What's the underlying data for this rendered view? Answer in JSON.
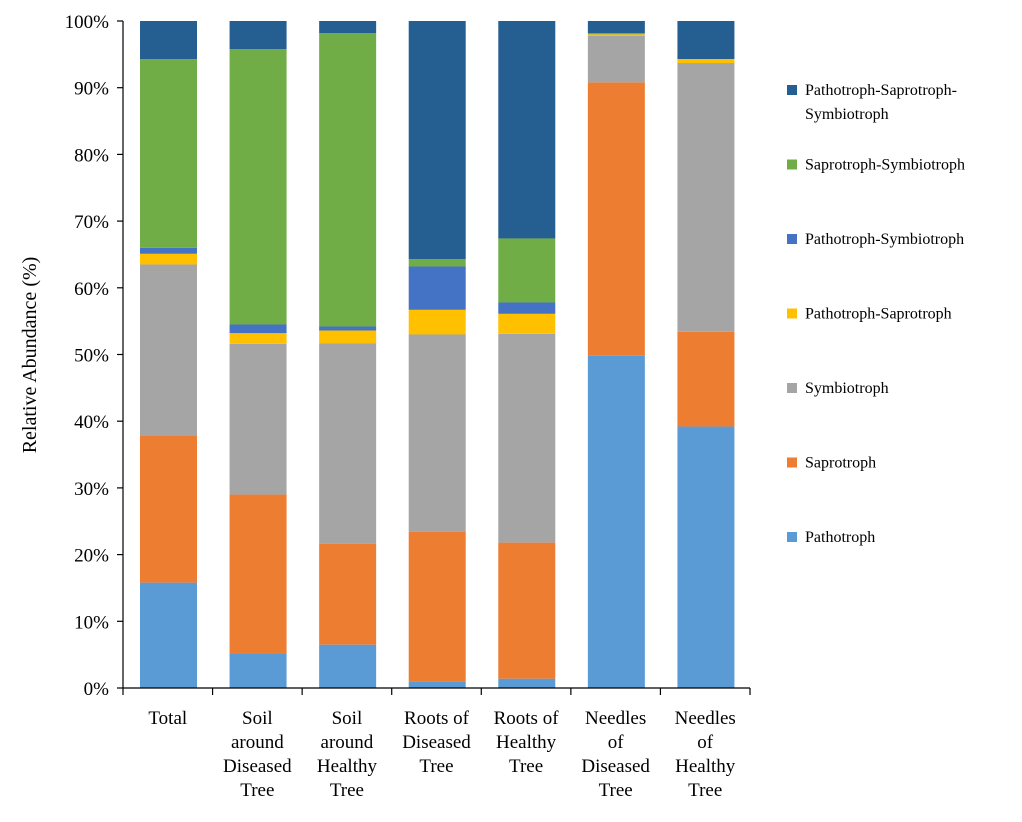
{
  "chart_data": {
    "type": "bar",
    "stacked": true,
    "percent": true,
    "title": "",
    "xlabel": "",
    "ylabel": "Relative Abundance (%)",
    "ylim": [
      0,
      100
    ],
    "yticks": [
      "0%",
      "10%",
      "20%",
      "30%",
      "40%",
      "50%",
      "60%",
      "70%",
      "80%",
      "90%",
      "100%"
    ],
    "grid": false,
    "legend_position": "right",
    "categories": [
      [
        "Total"
      ],
      [
        "Soil",
        "around",
        "Diseased",
        "Tree"
      ],
      [
        "Soil",
        "around",
        "Healthy",
        "Tree"
      ],
      [
        "Roots of",
        "Diseased",
        "Tree"
      ],
      [
        "Roots of",
        "Healthy",
        "Tree"
      ],
      [
        "Needles",
        "of",
        "Diseased",
        "Tree"
      ],
      [
        "Needles",
        "of",
        "Healthy",
        "Tree"
      ]
    ],
    "series": [
      {
        "name": "Pathotroph",
        "color": "#5B9BD5",
        "values": [
          15.8,
          5.1,
          6.5,
          1.0,
          1.4,
          49.8,
          39.2
        ]
      },
      {
        "name": "Saprotroph",
        "color": "#ED7D31",
        "values": [
          22.1,
          23.9,
          15.1,
          22.4,
          20.4,
          41.0,
          14.2
        ]
      },
      {
        "name": "Symbiotroph",
        "color": "#A5A5A5",
        "values": [
          25.6,
          22.6,
          30.1,
          29.6,
          31.3,
          7.0,
          40.3
        ]
      },
      {
        "name": "Pathotroph-Saprotroph",
        "color": "#FFC000",
        "values": [
          1.6,
          1.6,
          1.9,
          3.7,
          3.0,
          0.2,
          0.6
        ]
      },
      {
        "name": "Pathotroph-Symbiotroph",
        "color": "#4472C4",
        "values": [
          0.9,
          1.3,
          0.6,
          6.5,
          1.7,
          0.0,
          0.0
        ]
      },
      {
        "name": "Saprotroph-Symbiotroph",
        "color": "#70AD47",
        "values": [
          28.3,
          41.3,
          44.0,
          1.1,
          9.6,
          0.2,
          0.0
        ]
      },
      {
        "name": "Pathotroph-Saprotroph-Symbiotroph",
        "color": "#255E91",
        "values": [
          5.7,
          4.2,
          1.8,
          35.7,
          32.6,
          1.8,
          5.7
        ]
      }
    ],
    "legend": [
      {
        "lines": [
          "Pathotroph-Saprotroph-",
          "Symbiotroph"
        ],
        "color": "#255E91"
      },
      {
        "lines": [
          "Saprotroph-Symbiotroph"
        ],
        "color": "#70AD47"
      },
      {
        "lines": [
          "Pathotroph-Symbiotroph"
        ],
        "color": "#4472C4"
      },
      {
        "lines": [
          "Pathotroph-Saprotroph"
        ],
        "color": "#FFC000"
      },
      {
        "lines": [
          "Symbiotroph"
        ],
        "color": "#A5A5A5"
      },
      {
        "lines": [
          "Saprotroph"
        ],
        "color": "#ED7D31"
      },
      {
        "lines": [
          "Pathotroph"
        ],
        "color": "#5B9BD5"
      }
    ]
  }
}
